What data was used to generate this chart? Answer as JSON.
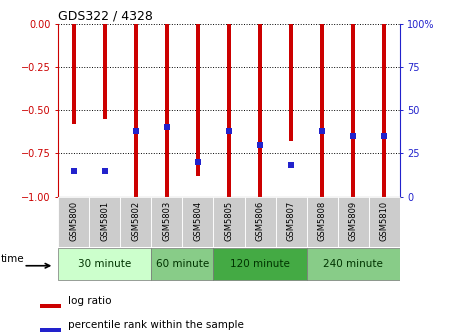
{
  "title": "GDS322 / 4328",
  "samples": [
    "GSM5800",
    "GSM5801",
    "GSM5802",
    "GSM5803",
    "GSM5804",
    "GSM5805",
    "GSM5806",
    "GSM5807",
    "GSM5808",
    "GSM5809",
    "GSM5810"
  ],
  "log_ratio": [
    -0.58,
    -0.55,
    -1.0,
    -1.0,
    -0.88,
    -1.0,
    -1.0,
    -0.68,
    -1.0,
    -1.0,
    -1.0
  ],
  "percentile": [
    15,
    15,
    38,
    40,
    20,
    38,
    30,
    18,
    38,
    35,
    35
  ],
  "ylim_left": [
    -1.0,
    0.0
  ],
  "ylim_right": [
    0,
    100
  ],
  "yticks_left": [
    0.0,
    -0.25,
    -0.5,
    -0.75,
    -1.0
  ],
  "yticks_right": [
    0,
    25,
    50,
    75,
    100
  ],
  "bar_color": "#cc0000",
  "dot_color": "#2222cc",
  "group_colors": [
    "#ccffcc",
    "#88cc88",
    "#44aa44",
    "#88cc88"
  ],
  "groups": [
    {
      "label": "30 minute",
      "start": 0,
      "end": 3
    },
    {
      "label": "60 minute",
      "start": 3,
      "end": 5
    },
    {
      "label": "120 minute",
      "start": 5,
      "end": 8
    },
    {
      "label": "240 minute",
      "start": 8,
      "end": 11
    }
  ],
  "legend_items": [
    {
      "label": "log ratio",
      "color": "#cc0000"
    },
    {
      "label": "percentile rank within the sample",
      "color": "#2222cc"
    }
  ],
  "bar_width": 0.12,
  "dot_size": 18,
  "background_color": "#ffffff",
  "tick_color_left": "#cc0000",
  "tick_color_right": "#2222cc",
  "tick_fontsize": 7,
  "title_fontsize": 9
}
